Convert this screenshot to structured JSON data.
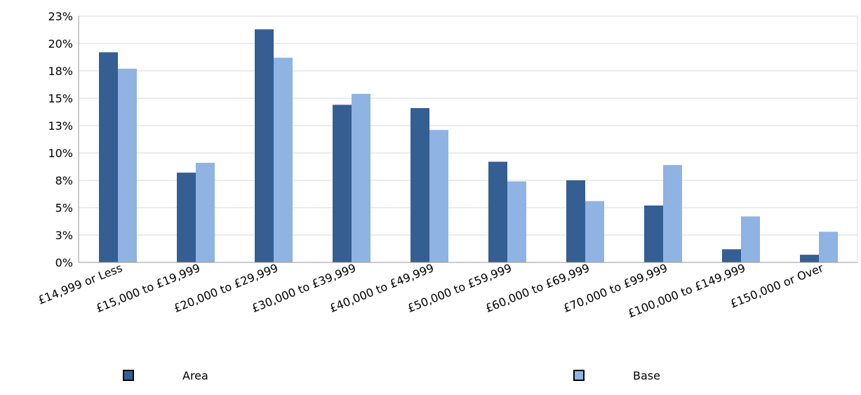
{
  "chart_data": {
    "type": "bar",
    "categories": [
      "£14,999 or Less",
      "£15,000 to £19,999",
      "£20,000 to £29,999",
      "£30,000 to £39,999",
      "£40,000 to £49,999",
      "£50,000 to £59,999",
      "£60,000 to £69,999",
      "£70,000 to £99,999",
      "£100,000 to £149,999",
      "£150,000 or Over"
    ],
    "series": [
      {
        "name": "Area",
        "color": "#355e93",
        "values": [
          19.2,
          8.2,
          21.3,
          14.4,
          14.1,
          9.2,
          7.5,
          5.2,
          1.2,
          0.7
        ]
      },
      {
        "name": "Base",
        "color": "#8fb3e3",
        "values": [
          17.7,
          9.1,
          18.7,
          15.4,
          12.1,
          7.4,
          5.6,
          8.9,
          4.2,
          2.8
        ]
      }
    ],
    "yticks": [
      "0%",
      "3%",
      "5%",
      "8%",
      "10%",
      "13%",
      "15%",
      "18%",
      "20%",
      "23%"
    ],
    "ytick_values": [
      0,
      2.5,
      5,
      7.5,
      10,
      12.5,
      15,
      17.5,
      20,
      22.5
    ],
    "ylim": [
      0,
      22.5
    ],
    "grid": true,
    "legend_position": "bottom",
    "title": "",
    "xlabel": "",
    "ylabel": "",
    "colors": {
      "gridline": "#d8d8d8",
      "axis": "#9a9a9a"
    }
  }
}
